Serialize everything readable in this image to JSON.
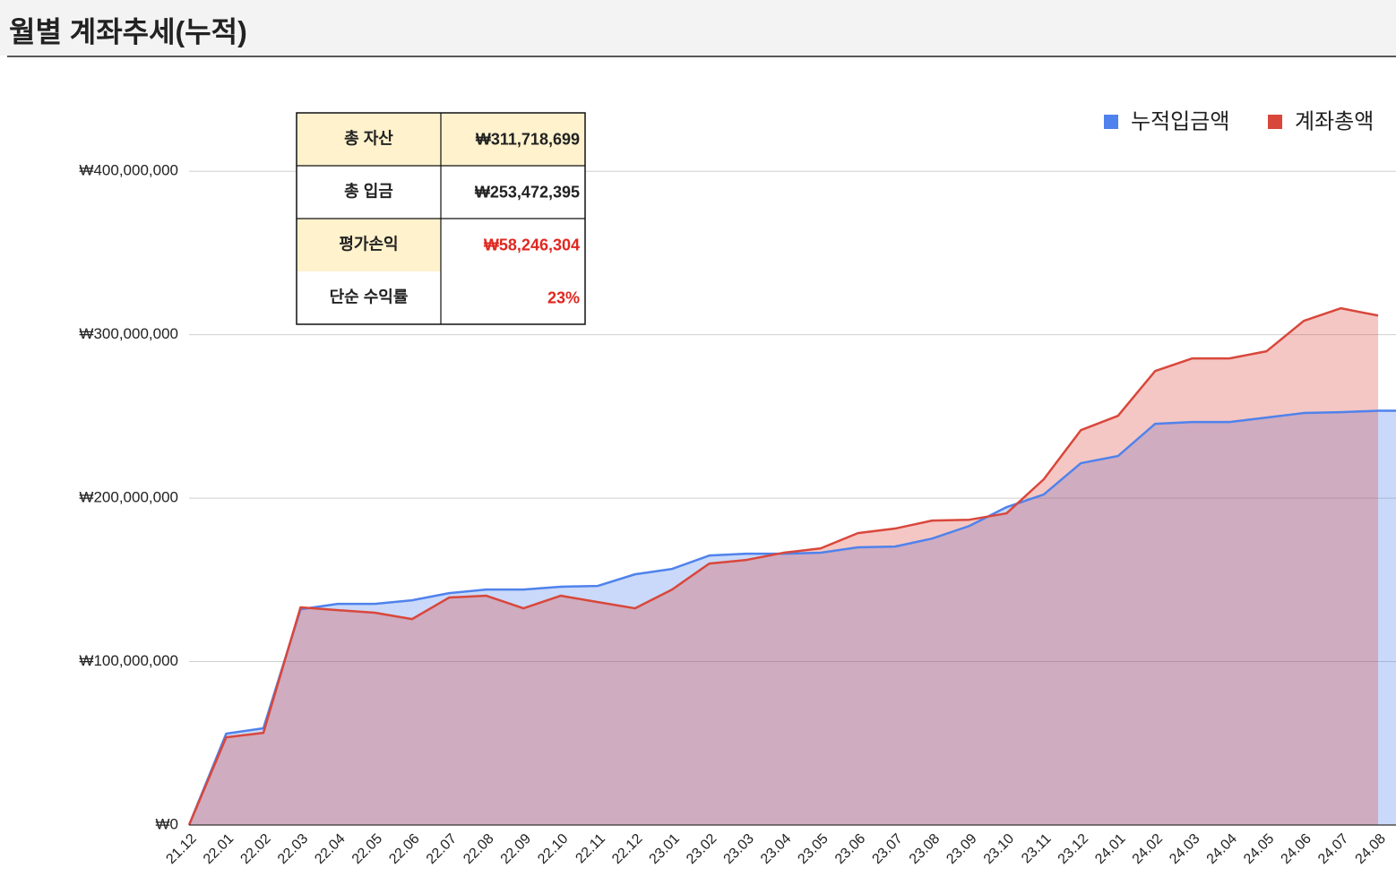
{
  "chart_data": {
    "type": "area",
    "title": "월별 계좌추세(누적)",
    "categories": [
      "21.12",
      "22.01",
      "22.02",
      "22.03",
      "22.04",
      "22.05",
      "22.06",
      "22.07",
      "22.08",
      "22.09",
      "22.10",
      "22.11",
      "22.12",
      "23.01",
      "23.02",
      "23.03",
      "23.04",
      "23.05",
      "23.06",
      "23.07",
      "23.08",
      "23.09",
      "23.10",
      "23.11",
      "23.12",
      "24.01",
      "24.02",
      "24.03",
      "24.04",
      "24.05",
      "24.06",
      "24.07",
      "24.08",
      null
    ],
    "series": [
      {
        "name": "누적입금액",
        "color": "#4f82ec",
        "values": [
          0,
          55900000,
          59200000,
          132000000,
          135300000,
          135300000,
          137500000,
          141900000,
          144100000,
          144100000,
          145800000,
          146300000,
          153400000,
          156700000,
          164900000,
          166000000,
          166000000,
          166600000,
          169900000,
          170400000,
          175300000,
          183000000,
          194500000,
          202200000,
          221400000,
          225800000,
          245500000,
          246600000,
          246600000,
          249300000,
          252100000,
          252600000,
          253472395,
          253472395
        ]
      },
      {
        "name": "계좌총액",
        "color": "#d9473b",
        "values": [
          0,
          53700000,
          56400000,
          133200000,
          131500000,
          129900000,
          126000000,
          139200000,
          140300000,
          132600000,
          140300000,
          136400000,
          132600000,
          144100000,
          160000000,
          162200000,
          166600000,
          169300000,
          178600000,
          181400000,
          186300000,
          186800000,
          190700000,
          211500000,
          241600000,
          250400000,
          277800000,
          285500000,
          285500000,
          289900000,
          308500000,
          316200000,
          311718699,
          null
        ]
      }
    ],
    "ylim": [
      0,
      450000000
    ],
    "yticks": [
      {
        "value": 0,
        "label": "₩0"
      },
      {
        "value": 100000000,
        "label": "₩100,000,000"
      },
      {
        "value": 200000000,
        "label": "₩200,000,000"
      },
      {
        "value": 300000000,
        "label": "₩300,000,000"
      },
      {
        "value": 400000000,
        "label": "₩400,000,000"
      }
    ],
    "grid": true,
    "legend": "top-right"
  },
  "summary": {
    "rows": [
      [
        "총 자산",
        "₩311,718,699"
      ],
      [
        "총 입금",
        "₩253,472,395"
      ],
      [
        "평가손익",
        "₩58,246,304"
      ],
      [
        "단순 수익률",
        "23%"
      ]
    ]
  }
}
